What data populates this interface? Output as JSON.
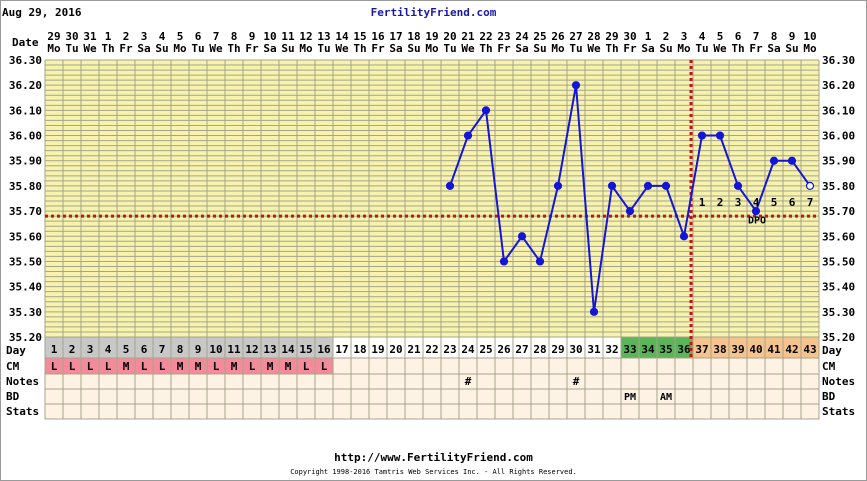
{
  "header": {
    "date": "Aug 29, 2016",
    "site": "FertilityFriend.com",
    "footer_url": "http://www.FertilityFriend.com",
    "copyright": "Copyright 1998-2016 Tamtris Web Services Inc. - All Rights Reserved."
  },
  "row_labels": [
    "Date",
    "Day",
    "CM",
    "Notes",
    "BD",
    "Stats"
  ],
  "chart_data": {
    "type": "line",
    "title": "",
    "ylim": [
      35.2,
      36.3
    ],
    "y_ticks": [
      "36.30",
      "36.20",
      "36.10",
      "36.00",
      "35.90",
      "35.80",
      "35.70",
      "35.60",
      "35.50",
      "35.40",
      "35.30",
      "35.20"
    ],
    "dates": [
      "29",
      "30",
      "31",
      "1",
      "2",
      "3",
      "4",
      "5",
      "6",
      "7",
      "8",
      "9",
      "10",
      "11",
      "12",
      "13",
      "14",
      "15",
      "16",
      "17",
      "18",
      "19",
      "20",
      "21",
      "22",
      "23",
      "24",
      "25",
      "26",
      "27",
      "28",
      "29",
      "30",
      "1",
      "2",
      "3",
      "4",
      "5",
      "6",
      "7",
      "8",
      "9",
      "10"
    ],
    "weekdays": [
      "Mo",
      "Tu",
      "We",
      "Th",
      "Fr",
      "Sa",
      "Su",
      "Mo",
      "Tu",
      "We",
      "Th",
      "Fr",
      "Sa",
      "Su",
      "Mo",
      "Tu",
      "We",
      "Th",
      "Fr",
      "Sa",
      "Su",
      "Mo",
      "Tu",
      "We",
      "Th",
      "Fr",
      "Sa",
      "Su",
      "Mo",
      "Tu",
      "We",
      "Th",
      "Fr",
      "Sa",
      "Su",
      "Mo",
      "Tu",
      "We",
      "Th",
      "Fr",
      "Sa",
      "Su",
      "Mo"
    ],
    "cycle_days": [
      "1",
      "2",
      "3",
      "4",
      "5",
      "6",
      "7",
      "8",
      "9",
      "10",
      "11",
      "12",
      "13",
      "14",
      "15",
      "16",
      "17",
      "18",
      "19",
      "20",
      "21",
      "22",
      "23",
      "24",
      "25",
      "26",
      "27",
      "28",
      "29",
      "30",
      "31",
      "32",
      "33",
      "34",
      "35",
      "36",
      "37",
      "38",
      "39",
      "40",
      "41",
      "42",
      "43"
    ],
    "temperatures": [
      null,
      null,
      null,
      null,
      null,
      null,
      null,
      null,
      null,
      null,
      null,
      null,
      null,
      null,
      null,
      null,
      null,
      null,
      null,
      null,
      null,
      null,
      35.8,
      36.0,
      36.1,
      35.5,
      35.6,
      35.5,
      35.8,
      36.2,
      35.3,
      35.8,
      35.7,
      35.8,
      35.8,
      35.6,
      36.0,
      36.0,
      35.8,
      35.7,
      35.9,
      35.9,
      35.8
    ],
    "open_point_day": 43,
    "coverline": 35.68,
    "ovulation_day": 36,
    "dpo_labels": [
      {
        "day": 37,
        "text": "1"
      },
      {
        "day": 38,
        "text": "2"
      },
      {
        "day": 39,
        "text": "3"
      },
      {
        "day": 40,
        "text": "4"
      },
      {
        "day": 41,
        "text": "5"
      },
      {
        "day": 42,
        "text": "6"
      },
      {
        "day": 43,
        "text": "7"
      }
    ],
    "dpo_text": "DPO",
    "cm": [
      "L",
      "L",
      "L",
      "L",
      "M",
      "L",
      "L",
      "M",
      "M",
      "L",
      "M",
      "L",
      "M",
      "M",
      "L",
      "L"
    ],
    "notes": [
      {
        "day": 24,
        "text": "#"
      },
      {
        "day": 30,
        "text": "#"
      }
    ],
    "notes_time": [
      {
        "day": 33,
        "text": "PM"
      },
      {
        "day": 35,
        "text": "AM"
      }
    ],
    "day_colors": {
      "gray": "#c8c8c8",
      "green": "#5ab55a",
      "orange": "#f5c48e",
      "white": "#ffffff"
    },
    "colors": {
      "line": "#1515d8",
      "grid": "#a6a48a",
      "plot_bg": "#f7f3ad",
      "cm_bg": "#f48a9a",
      "row_bg": "#fdf2e4",
      "coverline": "#cc1111"
    }
  }
}
